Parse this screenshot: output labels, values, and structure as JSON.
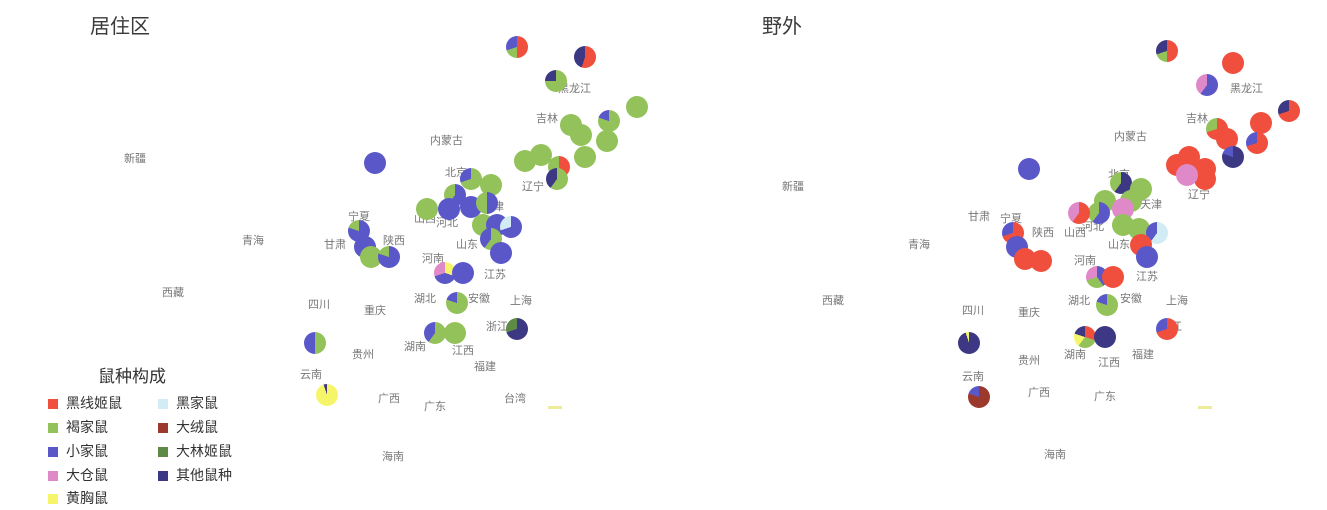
{
  "colors": {
    "heixian": "#ef4f3c",
    "hejia": "#92c259",
    "xiaojia": "#5a57c9",
    "dacang": "#e089c9",
    "huangxiong": "#f6f56a",
    "heijia": "#d2ecf5",
    "darong": "#9b3a2c",
    "dalin": "#5d8a47",
    "qita": "#3d3883"
  },
  "panels": {
    "left": {
      "title": "居住区",
      "provinces": [
        "黑龙江",
        "吉林",
        "内蒙古",
        "新疆",
        "北京",
        "辽宁",
        "天津",
        "宁夏",
        "河北",
        "甘肃",
        "陕西",
        "青海",
        "山西",
        "山东",
        "河南",
        "江苏",
        "西藏",
        "四川",
        "湖北",
        "安徽",
        "上海",
        "重庆",
        "浙江",
        "湖南",
        "江西",
        "贵州",
        "福建",
        "云南",
        "广西",
        "广东",
        "台湾",
        "海南"
      ]
    },
    "right": {
      "title": "野外",
      "provinces": [
        "黑龙江",
        "吉林",
        "内蒙古",
        "新疆",
        "北京",
        "辽宁",
        "天津",
        "宁夏",
        "河北",
        "甘肃",
        "陕西",
        "山西",
        "青海",
        "山东",
        "河南",
        "江苏",
        "西藏",
        "四川",
        "湖北",
        "安徽",
        "上海",
        "重庆",
        "浙江",
        "湖南",
        "江西",
        "贵州",
        "福建",
        "云南",
        "广西",
        "广东",
        "海南"
      ]
    }
  },
  "legend": {
    "title": "鼠种构成",
    "items": [
      {
        "label": "黑线姬鼠",
        "color": "#ef4f3c"
      },
      {
        "label": "黑家鼠",
        "color": "#d2ecf5"
      },
      {
        "label": "褐家鼠",
        "color": "#92c259"
      },
      {
        "label": "大绒鼠",
        "color": "#9b3a2c"
      },
      {
        "label": "小家鼠",
        "color": "#5a57c9"
      },
      {
        "label": "大林姬鼠",
        "color": "#5d8a47"
      },
      {
        "label": "大仓鼠",
        "color": "#e089c9"
      },
      {
        "label": "其他鼠种",
        "color": "#3d3883"
      },
      {
        "label": "黄胸鼠",
        "color": "#f6f56a"
      }
    ]
  }
}
